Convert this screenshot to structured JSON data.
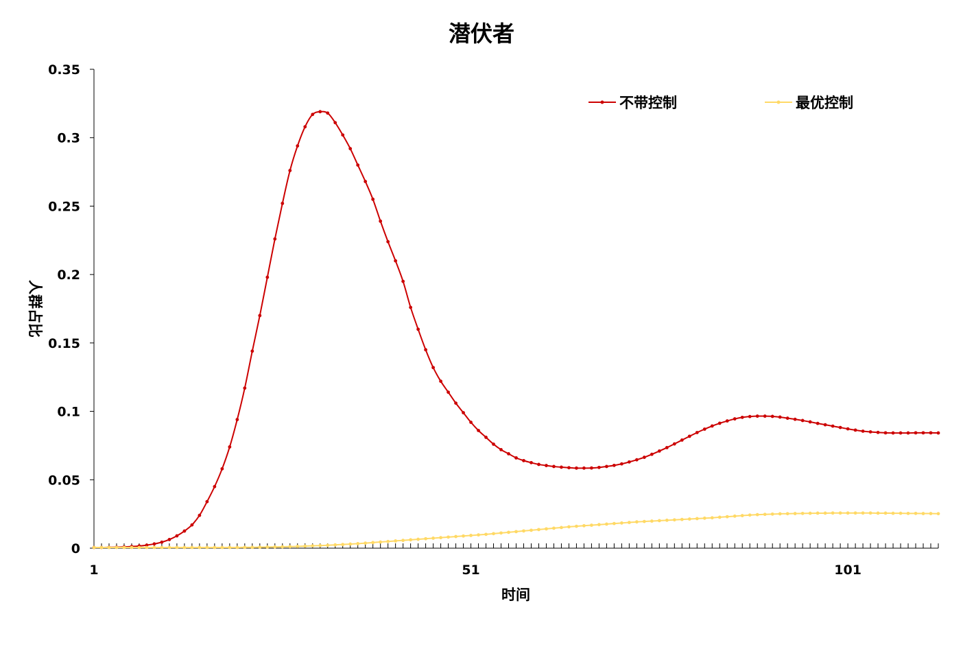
{
  "chart_data": {
    "type": "line",
    "title": "潜伏者",
    "xlabel": "时间",
    "ylabel": "人群占比",
    "xlim": [
      1,
      113
    ],
    "ylim": [
      0,
      0.35
    ],
    "x_tick_labels": [
      "1",
      "51",
      "101"
    ],
    "x_tick_values": [
      1,
      51,
      101
    ],
    "y_tick_labels": [
      "0",
      "0.05",
      "0.1",
      "0.15",
      "0.2",
      "0.25",
      "0.3",
      "0.35"
    ],
    "y_tick_values": [
      0,
      0.05,
      0.1,
      0.15,
      0.2,
      0.25,
      0.3,
      0.35
    ],
    "grid": false,
    "legend_position": "top-right",
    "x": [
      1,
      2,
      3,
      4,
      5,
      6,
      7,
      8,
      9,
      10,
      11,
      12,
      13,
      14,
      15,
      16,
      17,
      18,
      19,
      20,
      21,
      22,
      23,
      24,
      25,
      26,
      27,
      28,
      29,
      30,
      31,
      32,
      33,
      34,
      35,
      36,
      37,
      38,
      39,
      40,
      41,
      42,
      43,
      44,
      45,
      46,
      47,
      48,
      49,
      50,
      51,
      52,
      53,
      54,
      55,
      56,
      57,
      58,
      59,
      60,
      61,
      62,
      63,
      64,
      65,
      66,
      67,
      68,
      69,
      70,
      71,
      72,
      73,
      74,
      75,
      76,
      77,
      78,
      79,
      80,
      81,
      82,
      83,
      84,
      85,
      86,
      87,
      88,
      89,
      90,
      91,
      92,
      93,
      94,
      95,
      96,
      97,
      98,
      99,
      100,
      101,
      102,
      103,
      104,
      105,
      106,
      107,
      108,
      109,
      110,
      111,
      112,
      113
    ],
    "series": [
      {
        "name": "不带控制",
        "color": "#cc0000",
        "values": [
          0.0005,
          0.0005,
          0.0006,
          0.0007,
          0.0009,
          0.0012,
          0.0016,
          0.0022,
          0.0031,
          0.0044,
          0.0063,
          0.009,
          0.0125,
          0.017,
          0.024,
          0.034,
          0.045,
          0.058,
          0.074,
          0.094,
          0.117,
          0.144,
          0.17,
          0.198,
          0.226,
          0.252,
          0.276,
          0.294,
          0.308,
          0.317,
          0.319,
          0.318,
          0.311,
          0.302,
          0.292,
          0.28,
          0.268,
          0.255,
          0.239,
          0.224,
          0.21,
          0.195,
          0.176,
          0.16,
          0.145,
          0.132,
          0.122,
          0.114,
          0.106,
          0.099,
          0.092,
          0.086,
          0.081,
          0.076,
          0.072,
          0.069,
          0.066,
          0.064,
          0.0625,
          0.0612,
          0.0604,
          0.0597,
          0.0592,
          0.0588,
          0.0585,
          0.0585,
          0.0586,
          0.059,
          0.0597,
          0.0605,
          0.0616,
          0.063,
          0.0646,
          0.0664,
          0.0686,
          0.071,
          0.0735,
          0.0762,
          0.079,
          0.0818,
          0.0845,
          0.087,
          0.0893,
          0.0913,
          0.093,
          0.0945,
          0.0956,
          0.0962,
          0.0965,
          0.0965,
          0.0963,
          0.0958,
          0.095,
          0.0942,
          0.0933,
          0.0923,
          0.0912,
          0.0902,
          0.0892,
          0.0882,
          0.0872,
          0.0863,
          0.0855,
          0.085,
          0.0846,
          0.0843,
          0.0842,
          0.0842,
          0.0842,
          0.0843,
          0.0843,
          0.0843,
          0.0842
        ]
      },
      {
        "name": "最优控制",
        "color": "#ffd966",
        "values": [
          0.0005,
          0.0005,
          0.0005,
          0.0005,
          0.0005,
          0.0005,
          0.0005,
          0.0005,
          0.0005,
          0.0005,
          0.0005,
          0.0005,
          0.0005,
          0.0005,
          0.0005,
          0.0005,
          0.0005,
          0.0005,
          0.0005,
          0.0005,
          0.0006,
          0.0006,
          0.0007,
          0.0008,
          0.0009,
          0.001,
          0.0011,
          0.0013,
          0.0015,
          0.0017,
          0.0019,
          0.0021,
          0.0024,
          0.0027,
          0.003,
          0.0033,
          0.0037,
          0.0041,
          0.0045,
          0.0049,
          0.0053,
          0.0057,
          0.0061,
          0.0065,
          0.0069,
          0.0073,
          0.0077,
          0.0081,
          0.0085,
          0.0089,
          0.0093,
          0.0097,
          0.0101,
          0.0106,
          0.0111,
          0.0116,
          0.0121,
          0.0126,
          0.0131,
          0.0136,
          0.0141,
          0.0146,
          0.0151,
          0.0156,
          0.016,
          0.0164,
          0.0168,
          0.0172,
          0.0176,
          0.018,
          0.0184,
          0.0188,
          0.0192,
          0.0195,
          0.0198,
          0.0201,
          0.0204,
          0.0207,
          0.021,
          0.0213,
          0.0216,
          0.0219,
          0.0222,
          0.0226,
          0.023,
          0.0234,
          0.0238,
          0.0242,
          0.0245,
          0.0247,
          0.0249,
          0.0251,
          0.0252,
          0.0253,
          0.0254,
          0.0255,
          0.0256,
          0.0256,
          0.0257,
          0.0257,
          0.0257,
          0.0257,
          0.0257,
          0.0257,
          0.0256,
          0.0256,
          0.0255,
          0.0255,
          0.0254,
          0.0254,
          0.0253,
          0.0253,
          0.0252
        ]
      }
    ]
  }
}
